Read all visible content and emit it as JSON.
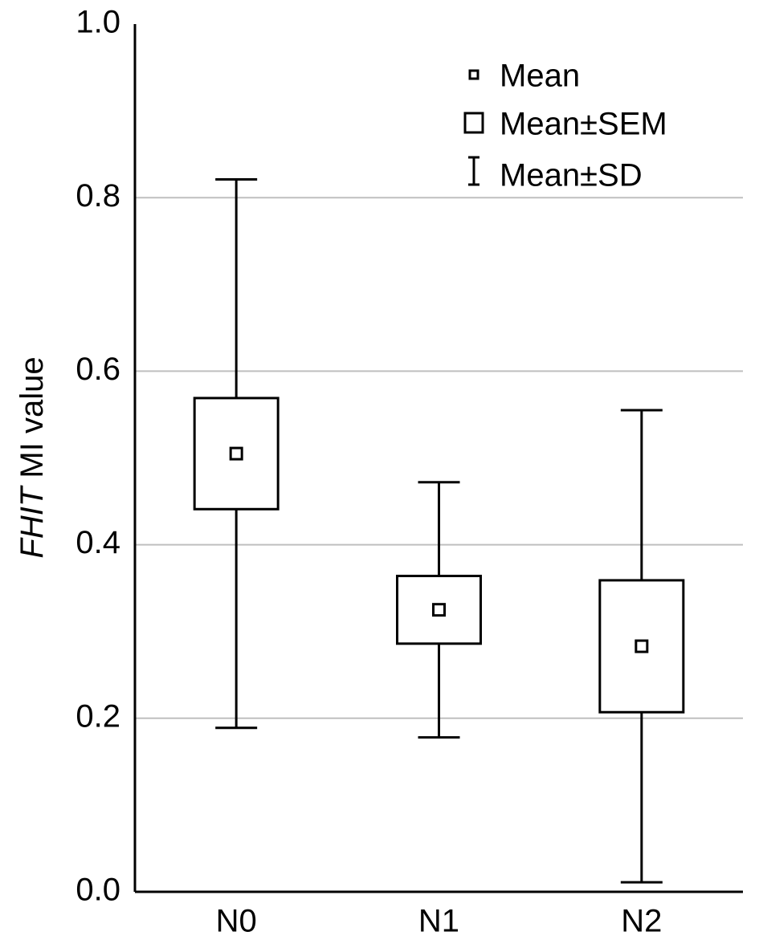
{
  "chart_data": {
    "type": "mean-sem-sd",
    "ylabel": {
      "italic": "FHIT",
      "text": "MI value"
    },
    "categories": [
      "N0",
      "N1",
      "N2"
    ],
    "mean": [
      0.505,
      0.325,
      0.283
    ],
    "sem": [
      0.064,
      0.039,
      0.076
    ],
    "sd": [
      0.316,
      0.147,
      0.272
    ],
    "legend": [
      "Mean",
      "Mean±SEM",
      "Mean±SD"
    ],
    "ylim": [
      0,
      1
    ],
    "yticks": [
      {
        "value": 0,
        "label": "0.0"
      },
      0.2,
      0.4,
      0.6,
      0.8,
      {
        "value": 1,
        "label": "1.0"
      }
    ],
    "grid": true,
    "grid_color": "#bfbfbf",
    "color": "#000000"
  }
}
